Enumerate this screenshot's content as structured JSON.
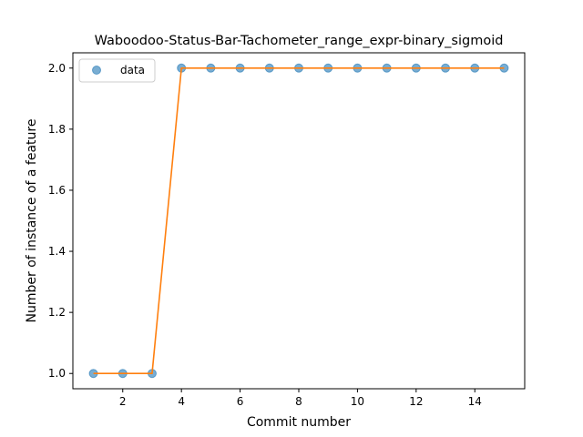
{
  "chart_data": {
    "type": "line",
    "title": "Waboodoo-Status-Bar-Tachometer_range_expr-binary_sigmoid",
    "xlabel": "Commit number",
    "ylabel": "Number of instance of a feature",
    "xlim": [
      0.3,
      15.7
    ],
    "ylim": [
      0.95,
      2.05
    ],
    "x_ticks": [
      2,
      4,
      6,
      8,
      10,
      12,
      14
    ],
    "y_ticks": [
      1.0,
      1.2,
      1.4,
      1.6,
      1.8,
      2.0
    ],
    "legend": {
      "placement": "upper-left",
      "entries": [
        "data"
      ]
    },
    "grid": false,
    "series": [
      {
        "name": "data",
        "kind": "scatter",
        "color": "#1f77b4",
        "x": [
          1,
          2,
          3,
          4,
          5,
          6,
          7,
          8,
          9,
          10,
          11,
          12,
          13,
          14,
          15
        ],
        "y": [
          1,
          1,
          1,
          2,
          2,
          2,
          2,
          2,
          2,
          2,
          2,
          2,
          2,
          2,
          2
        ]
      },
      {
        "kind": "line",
        "color": "#ff7f0e",
        "x": [
          1,
          2,
          3,
          4,
          5,
          6,
          7,
          8,
          9,
          10,
          11,
          12,
          13,
          14,
          15
        ],
        "y": [
          1,
          1,
          1,
          2,
          2,
          2,
          2,
          2,
          2,
          2,
          2,
          2,
          2,
          2,
          2
        ]
      }
    ]
  }
}
